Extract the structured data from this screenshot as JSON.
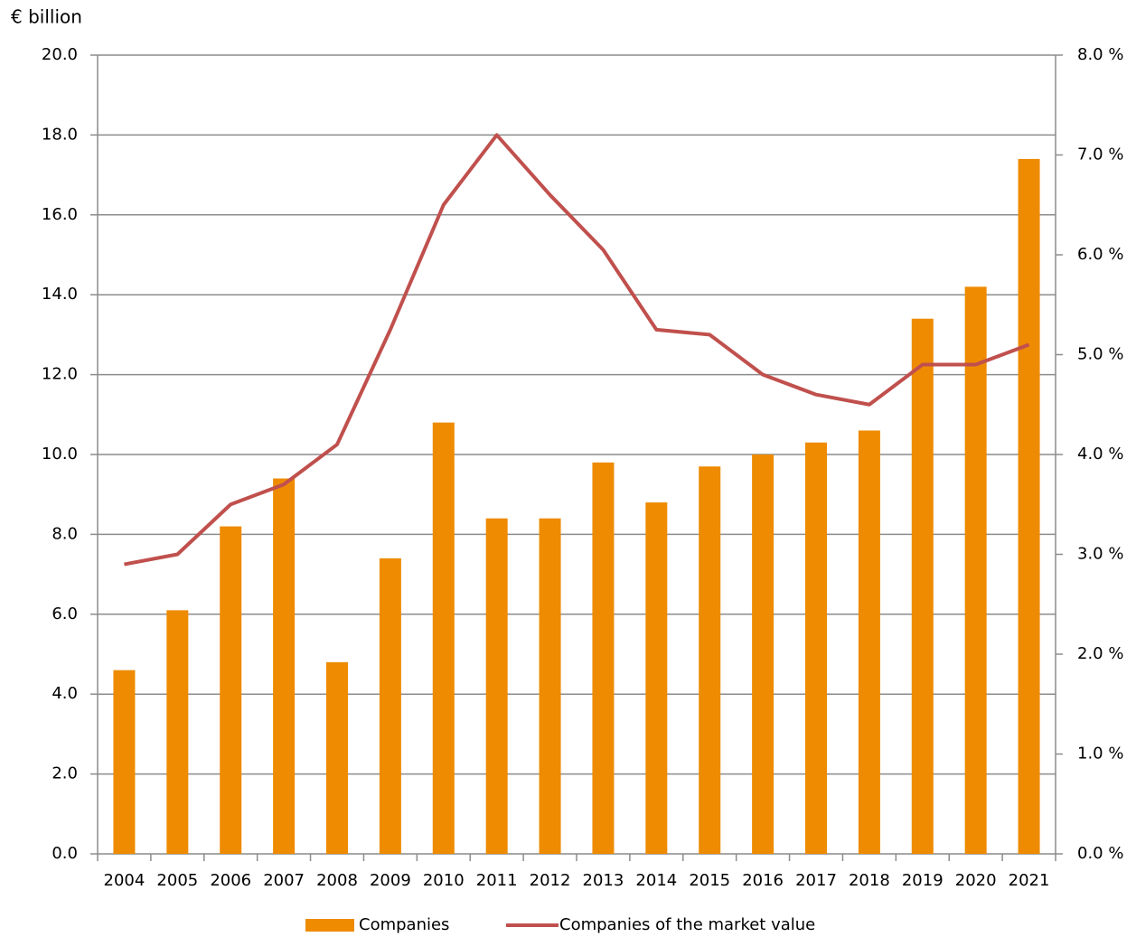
{
  "chart_data": {
    "type": "bar-line",
    "y_label": "€ billion",
    "categories": [
      "2004",
      "2005",
      "2006",
      "2007",
      "2008",
      "2009",
      "2010",
      "2011",
      "2012",
      "2013",
      "2014",
      "2015",
      "2016",
      "2017",
      "2018",
      "2019",
      "2020",
      "2021"
    ],
    "series": [
      {
        "name": "Companies",
        "type": "bar",
        "color": "#ee8b00",
        "values": [
          4.6,
          6.1,
          8.2,
          9.4,
          4.8,
          7.4,
          10.8,
          8.4,
          8.4,
          9.8,
          8.8,
          9.7,
          10.0,
          10.3,
          10.6,
          13.4,
          14.2,
          17.4
        ]
      },
      {
        "name": "Companies of the market value",
        "type": "line",
        "axis": "y2",
        "color": "#c0504d",
        "values": [
          2.9,
          3.0,
          3.5,
          3.7,
          4.1,
          5.25,
          6.5,
          7.2,
          6.6,
          6.05,
          5.25,
          5.2,
          4.8,
          4.6,
          4.5,
          4.9,
          4.9,
          5.1
        ]
      }
    ],
    "ylim": [
      0,
      20
    ],
    "yticks": [
      {
        "value": 0,
        "label": "0.0"
      },
      {
        "value": 2,
        "label": "2.0"
      },
      {
        "value": 4,
        "label": "4.0"
      },
      {
        "value": 6,
        "label": "6.0"
      },
      {
        "value": 8,
        "label": "8.0"
      },
      {
        "value": 10,
        "label": "10.0"
      },
      {
        "value": 12,
        "label": "12.0"
      },
      {
        "value": 14,
        "label": "14.0"
      },
      {
        "value": 16,
        "label": "16.0"
      },
      {
        "value": 18,
        "label": "18.0"
      },
      {
        "value": 20,
        "label": "20.0"
      }
    ],
    "y2lim": [
      0,
      8
    ],
    "y2ticks": [
      {
        "value": 0,
        "label": "0.0 %"
      },
      {
        "value": 1,
        "label": "1.0 %"
      },
      {
        "value": 2,
        "label": "2.0 %"
      },
      {
        "value": 3,
        "label": "3.0 %"
      },
      {
        "value": 4,
        "label": "4.0 %"
      },
      {
        "value": 5,
        "label": "5.0 %"
      },
      {
        "value": 6,
        "label": "6.0 %"
      },
      {
        "value": 7,
        "label": "7.0 %"
      },
      {
        "value": 8,
        "label": "8.0 %"
      }
    ],
    "grid": true,
    "legend": "bottom"
  }
}
